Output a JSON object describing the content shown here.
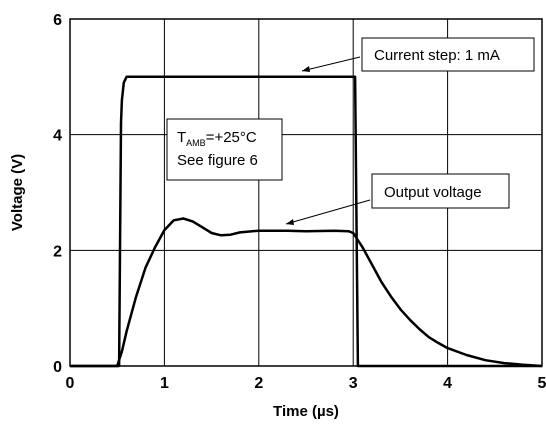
{
  "chart_data": {
    "type": "line",
    "xlabel": "Time (µs)",
    "ylabel": "Voltage (V)",
    "xlim": [
      0,
      5
    ],
    "ylim": [
      0,
      6
    ],
    "x_ticks": [
      "0",
      "1",
      "2",
      "3",
      "4",
      "5"
    ],
    "y_ticks": [
      "0",
      "2",
      "4",
      "6"
    ],
    "grid": true,
    "series": [
      {
        "points": [
          [
            0,
            0
          ],
          [
            0.52,
            0
          ],
          [
            0.54,
            4.2
          ],
          [
            0.55,
            4.6
          ],
          [
            0.57,
            4.9
          ],
          [
            0.6,
            5
          ],
          [
            3.0,
            5
          ],
          [
            3.02,
            5
          ],
          [
            3.05,
            0
          ],
          [
            5,
            0
          ]
        ]
      },
      {
        "points": [
          [
            0,
            0
          ],
          [
            0.5,
            0
          ],
          [
            0.55,
            0.25
          ],
          [
            0.6,
            0.6
          ],
          [
            0.7,
            1.2
          ],
          [
            0.8,
            1.7
          ],
          [
            0.9,
            2.05
          ],
          [
            1.0,
            2.35
          ],
          [
            1.1,
            2.52
          ],
          [
            1.2,
            2.55
          ],
          [
            1.3,
            2.5
          ],
          [
            1.4,
            2.4
          ],
          [
            1.5,
            2.3
          ],
          [
            1.6,
            2.26
          ],
          [
            1.7,
            2.27
          ],
          [
            1.8,
            2.31
          ],
          [
            2.0,
            2.34
          ],
          [
            2.3,
            2.34
          ],
          [
            2.5,
            2.33
          ],
          [
            2.8,
            2.34
          ],
          [
            2.95,
            2.33
          ],
          [
            3.0,
            2.3
          ],
          [
            3.1,
            2.05
          ],
          [
            3.2,
            1.75
          ],
          [
            3.3,
            1.45
          ],
          [
            3.4,
            1.2
          ],
          [
            3.5,
            0.98
          ],
          [
            3.6,
            0.8
          ],
          [
            3.7,
            0.64
          ],
          [
            3.8,
            0.5
          ],
          [
            3.9,
            0.4
          ],
          [
            4.0,
            0.31
          ],
          [
            4.2,
            0.19
          ],
          [
            4.4,
            0.1
          ],
          [
            4.6,
            0.05
          ],
          [
            4.8,
            0.02
          ],
          [
            5.0,
            0
          ]
        ]
      }
    ],
    "annotations": {
      "current_step": "Current step: 1 mA",
      "output_voltage": "Output voltage",
      "conditions_line1_main": "T",
      "conditions_line1_sub": "AMB",
      "conditions_line1_rest": "=+25°C",
      "conditions_line2": "See figure 6"
    }
  }
}
